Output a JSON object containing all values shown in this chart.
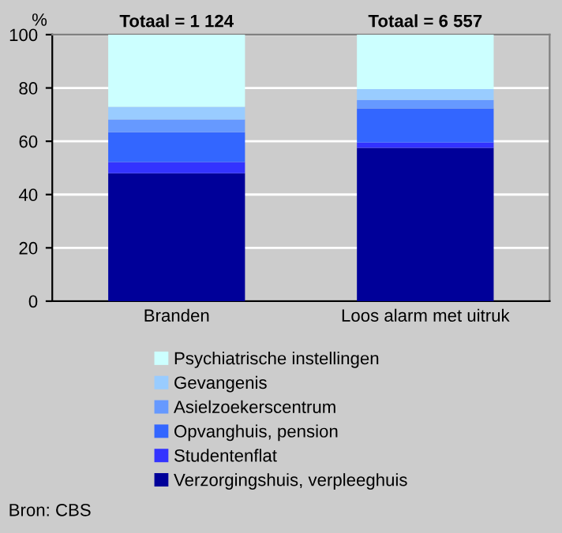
{
  "chart_data": {
    "type": "bar",
    "stacked": true,
    "ylabel": "%",
    "categories": [
      "Branden",
      "Loos alarm met uitruk"
    ],
    "series": [
      {
        "name": "Verzorgingshuis, verpleeghuis",
        "color": "#000099",
        "values": [
          48.0,
          57.5
        ]
      },
      {
        "name": "Studentenflat",
        "color": "#3333ff",
        "values": [
          4.2,
          2.0
        ]
      },
      {
        "name": "Opvanghuis, pension",
        "color": "#3366ff",
        "values": [
          11.2,
          12.8
        ]
      },
      {
        "name": "Asielzoekerscentrum",
        "color": "#6699ff",
        "values": [
          4.8,
          3.2
        ]
      },
      {
        "name": "Gevangenis",
        "color": "#99ccff",
        "values": [
          4.7,
          4.1
        ]
      },
      {
        "name": "Psychiatrische instellingen",
        "color": "#ccffff",
        "values": [
          27.1,
          20.4
        ]
      }
    ],
    "ylim": [
      0,
      100
    ],
    "yticks": [
      0,
      20,
      40,
      60,
      80,
      100
    ],
    "grid": "y",
    "legend": "bottom",
    "annotations": [
      {
        "text": "Totaal = 1 124",
        "x": "Branden",
        "y": 100
      },
      {
        "text": "Totaal = 6 557",
        "x": "Loos alarm met uitruk",
        "y": 100
      },
      "Bron: CBS"
    ]
  }
}
